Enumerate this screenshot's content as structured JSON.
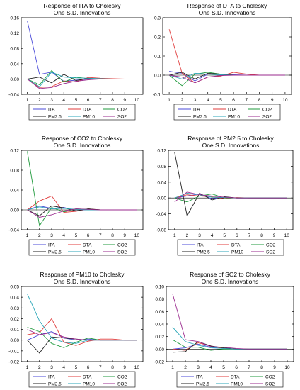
{
  "series_colors": {
    "ITA": "#4b4bd9",
    "DTA": "#e03b3b",
    "CO2": "#1f9a3c",
    "PM2.5": "#222222",
    "PM10": "#2aa6b8",
    "SO2": "#9a2a8e"
  },
  "chart_data": [
    {
      "type": "line",
      "title": "Response of     ITA to Cholesky",
      "subtitle": "One S.D. Innovations",
      "x": [
        1,
        2,
        3,
        4,
        5,
        6,
        7,
        8,
        9,
        10
      ],
      "xticks": [
        "1",
        "2",
        "3",
        "4",
        "5",
        "6",
        "7",
        "8",
        "9",
        "10"
      ],
      "ylim": [
        -0.04,
        0.16
      ],
      "yticks": [
        -0.04,
        0.0,
        0.04,
        0.08,
        0.12,
        0.16
      ],
      "ytick_labels": [
        "-0.04",
        "0.00",
        "0.04",
        "0.08",
        "0.12",
        "0.16"
      ],
      "grid": false,
      "legend": "bottom",
      "series": [
        {
          "name": "ITA",
          "values": [
            0.152,
            0.012,
            0.018,
            -0.006,
            -0.003,
            0.0,
            0.001,
            0.0,
            0.0,
            0.0
          ]
        },
        {
          "name": "DTA",
          "values": [
            0.0,
            -0.022,
            -0.02,
            -0.005,
            -0.008,
            0.004,
            0.002,
            0.001,
            0.0,
            0.0
          ]
        },
        {
          "name": "CO2",
          "values": [
            0.0,
            -0.015,
            0.022,
            -0.008,
            0.005,
            0.001,
            0.0,
            0.0,
            0.0,
            0.0
          ]
        },
        {
          "name": "PM2.5",
          "values": [
            0.0,
            0.005,
            -0.01,
            0.012,
            -0.004,
            0.002,
            0.0,
            0.0,
            0.0,
            0.0
          ]
        },
        {
          "name": "PM10",
          "values": [
            0.0,
            -0.02,
            0.018,
            0.005,
            0.003,
            0.002,
            0.001,
            0.0,
            0.0,
            0.0
          ]
        },
        {
          "name": "SO2",
          "values": [
            0.0,
            -0.025,
            -0.022,
            -0.012,
            -0.006,
            -0.002,
            0.0,
            0.0,
            0.0,
            0.0
          ]
        }
      ]
    },
    {
      "type": "line",
      "title": "Response of     DTA to Cholesky",
      "subtitle": "One S.D. Innovations",
      "x": [
        1,
        2,
        3,
        4,
        5,
        6,
        7,
        8,
        9,
        10
      ],
      "xticks": [
        "1",
        "2",
        "3",
        "4",
        "5",
        "6",
        "7",
        "8",
        "9",
        "10"
      ],
      "ylim": [
        -0.1,
        0.3
      ],
      "yticks": [
        -0.1,
        0.0,
        0.1,
        0.2,
        0.3
      ],
      "ytick_labels": [
        "-0.1",
        "0.0",
        "0.1",
        "0.2",
        "0.3"
      ],
      "grid": false,
      "legend": "bottom",
      "series": [
        {
          "name": "ITA",
          "values": [
            0.02,
            0.01,
            -0.03,
            0.005,
            0.005,
            0.002,
            0.0,
            0.0,
            0.0,
            0.0
          ]
        },
        {
          "name": "DTA",
          "values": [
            0.24,
            0.01,
            -0.04,
            -0.01,
            -0.005,
            0.015,
            0.005,
            0.0,
            0.0,
            0.0
          ]
        },
        {
          "name": "CO2",
          "values": [
            0.0,
            -0.055,
            0.005,
            0.015,
            0.005,
            0.0,
            0.0,
            0.0,
            0.0,
            0.0
          ]
        },
        {
          "name": "PM2.5",
          "values": [
            0.0,
            0.015,
            -0.02,
            0.01,
            0.005,
            0.0,
            0.0,
            0.0,
            0.0,
            0.0
          ]
        },
        {
          "name": "PM10",
          "values": [
            0.0,
            -0.02,
            0.01,
            0.005,
            0.002,
            0.0,
            0.0,
            0.0,
            0.0,
            0.0
          ]
        },
        {
          "name": "SO2",
          "values": [
            0.0,
            -0.01,
            -0.04,
            -0.01,
            -0.002,
            0.0,
            0.0,
            0.0,
            0.0,
            0.0
          ]
        }
      ]
    },
    {
      "type": "line",
      "title": "Response of     CO2 to Cholesky",
      "subtitle": "One S.D. Innovations",
      "x": [
        1,
        2,
        3,
        4,
        5,
        6,
        7,
        8,
        9,
        10
      ],
      "xticks": [
        "1",
        "2",
        "3",
        "4",
        "5",
        "6",
        "7",
        "8",
        "9",
        "10"
      ],
      "ylim": [
        -0.04,
        0.12
      ],
      "yticks": [
        -0.04,
        0.0,
        0.04,
        0.08,
        0.12
      ],
      "ytick_labels": [
        "-0.04",
        "0.00",
        "0.04",
        "0.08",
        "0.12"
      ],
      "grid": false,
      "legend": "bottom",
      "series": [
        {
          "name": "ITA",
          "values": [
            0.0,
            0.008,
            0.003,
            0.005,
            -0.002,
            0.001,
            0.0,
            0.0,
            0.0,
            0.0
          ]
        },
        {
          "name": "DTA",
          "values": [
            0.0,
            0.018,
            0.028,
            -0.005,
            -0.003,
            0.002,
            0.0,
            0.0,
            0.0,
            0.0
          ]
        },
        {
          "name": "CO2",
          "values": [
            0.118,
            -0.032,
            0.005,
            -0.004,
            0.002,
            0.001,
            0.0,
            0.0,
            0.0,
            0.0
          ]
        },
        {
          "name": "PM2.5",
          "values": [
            0.0,
            -0.012,
            0.008,
            0.004,
            -0.002,
            0.002,
            0.0,
            0.0,
            0.0,
            0.0
          ]
        },
        {
          "name": "PM10",
          "values": [
            0.0,
            0.006,
            0.002,
            0.003,
            0.001,
            0.0,
            0.0,
            0.0,
            0.0,
            0.0
          ]
        },
        {
          "name": "SO2",
          "values": [
            0.0,
            -0.015,
            -0.01,
            -0.002,
            0.002,
            0.001,
            0.0,
            0.0,
            0.0,
            0.0
          ]
        }
      ]
    },
    {
      "type": "line",
      "title": "Response of     PM2.5 to Cholesky",
      "subtitle": "One S.D. Innovations",
      "x": [
        1,
        2,
        3,
        4,
        5,
        6,
        7,
        8,
        9,
        10
      ],
      "xticks": [
        "1",
        "2",
        "3",
        "4",
        "5",
        "6",
        "7",
        "8",
        "9",
        "10"
      ],
      "ylim": [
        -0.08,
        0.12
      ],
      "yticks": [
        -0.08,
        -0.04,
        0.0,
        0.04,
        0.08,
        0.12
      ],
      "ytick_labels": [
        "-0.08",
        "-0.04",
        "0.00",
        "0.04",
        "0.08",
        "0.12"
      ],
      "grid": false,
      "legend": "bottom",
      "series": [
        {
          "name": "ITA",
          "values": [
            0.0,
            0.005,
            0.01,
            -0.002,
            0.002,
            0.0,
            0.0,
            0.0,
            0.0,
            0.0
          ]
        },
        {
          "name": "DTA",
          "values": [
            0.0,
            0.008,
            0.005,
            0.003,
            -0.002,
            0.001,
            0.0,
            0.0,
            0.0,
            0.0
          ]
        },
        {
          "name": "CO2",
          "values": [
            0.0,
            -0.01,
            0.005,
            0.01,
            0.0,
            0.0,
            0.0,
            0.0,
            0.0,
            0.0
          ]
        },
        {
          "name": "PM2.5",
          "values": [
            0.115,
            -0.045,
            0.012,
            -0.005,
            0.003,
            0.0,
            0.0,
            0.0,
            0.0,
            0.0
          ]
        },
        {
          "name": "PM10",
          "values": [
            0.0,
            0.012,
            0.008,
            0.002,
            0.001,
            0.0,
            0.0,
            0.0,
            0.0,
            0.0
          ]
        },
        {
          "name": "SO2",
          "values": [
            -0.01,
            0.015,
            0.008,
            0.005,
            0.002,
            0.0,
            0.0,
            0.0,
            0.0,
            0.0
          ]
        }
      ]
    },
    {
      "type": "line",
      "title": "Response of     PM10 to Cholesky",
      "subtitle": "One S.D. Innovations",
      "x": [
        1,
        2,
        3,
        4,
        5,
        6,
        7,
        8,
        9,
        10
      ],
      "xticks": [
        "1",
        "2",
        "3",
        "4",
        "5",
        "6",
        "7",
        "8",
        "9",
        "10"
      ],
      "ylim": [
        -0.02,
        0.05
      ],
      "yticks": [
        -0.02,
        -0.01,
        0.0,
        0.01,
        0.02,
        0.03,
        0.04,
        0.05
      ],
      "ytick_labels": [
        "-0.02",
        "-0.01",
        "0.00",
        "0.01",
        "0.02",
        "0.03",
        "0.04",
        "0.05"
      ],
      "grid": false,
      "legend": "bottom",
      "series": [
        {
          "name": "ITA",
          "values": [
            0.0,
            0.005,
            0.008,
            0.002,
            0.0,
            0.001,
            0.0,
            0.0,
            0.0,
            0.0
          ]
        },
        {
          "name": "DTA",
          "values": [
            0.005,
            0.007,
            0.02,
            -0.002,
            -0.005,
            -0.001,
            0.001,
            0.001,
            0.0,
            0.0
          ]
        },
        {
          "name": "CO2",
          "values": [
            0.012,
            0.008,
            -0.003,
            -0.007,
            -0.002,
            0.002,
            0.0,
            0.0,
            0.0,
            0.0
          ]
        },
        {
          "name": "PM2.5",
          "values": [
            0.0,
            -0.012,
            0.003,
            0.002,
            0.001,
            0.0,
            0.0,
            0.0,
            0.0,
            0.0
          ]
        },
        {
          "name": "PM10",
          "values": [
            0.043,
            0.018,
            0.002,
            -0.002,
            -0.003,
            0.0,
            0.0,
            0.0,
            0.0,
            0.0
          ]
        },
        {
          "name": "SO2",
          "values": [
            0.01,
            0.005,
            0.007,
            0.003,
            0.001,
            0.0,
            0.0,
            0.0,
            0.0,
            0.0
          ]
        }
      ]
    },
    {
      "type": "line",
      "title": "Response of     SO2 to Cholesky",
      "subtitle": "One S.D. Innovations",
      "x": [
        1,
        2,
        3,
        4,
        5,
        6,
        7,
        8,
        9,
        10
      ],
      "xticks": [
        "1",
        "2",
        "3",
        "4",
        "5",
        "6",
        "7",
        "8",
        "9",
        "10"
      ],
      "ylim": [
        -0.02,
        0.1
      ],
      "yticks": [
        -0.02,
        0.0,
        0.02,
        0.04,
        0.06,
        0.08,
        0.1
      ],
      "ytick_labels": [
        "-0.02",
        "0.00",
        "0.02",
        "0.04",
        "0.06",
        "0.08",
        "0.10"
      ],
      "grid": false,
      "legend": "bottom",
      "series": [
        {
          "name": "ITA",
          "values": [
            0.0,
            0.002,
            0.008,
            0.003,
            0.001,
            0.0,
            0.0,
            0.0,
            0.0,
            0.0
          ]
        },
        {
          "name": "DTA",
          "values": [
            0.0,
            -0.002,
            0.01,
            0.005,
            0.001,
            0.0,
            0.0,
            0.0,
            0.0,
            0.0
          ]
        },
        {
          "name": "CO2",
          "values": [
            0.015,
            0.003,
            0.003,
            -0.002,
            0.0,
            0.0,
            0.0,
            0.0,
            0.0,
            0.0
          ]
        },
        {
          "name": "PM2.5",
          "values": [
            -0.005,
            -0.004,
            0.012,
            0.005,
            0.002,
            0.0,
            0.0,
            0.0,
            0.0,
            0.0
          ]
        },
        {
          "name": "PM10",
          "values": [
            0.035,
            0.012,
            0.006,
            0.002,
            0.001,
            0.0,
            0.0,
            0.0,
            0.0,
            0.0
          ]
        },
        {
          "name": "SO2",
          "values": [
            0.088,
            0.015,
            0.012,
            0.004,
            0.003,
            0.001,
            0.0,
            0.0,
            0.0,
            0.0
          ]
        }
      ]
    }
  ]
}
